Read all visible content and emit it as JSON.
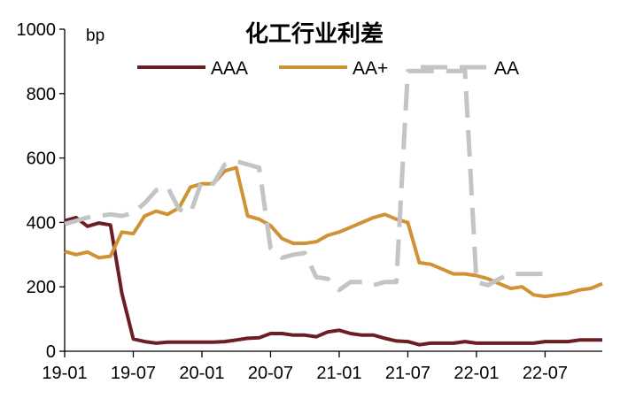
{
  "chart_data": {
    "type": "line",
    "title": "化工行业利差",
    "unit_label": "bp",
    "ylim": [
      0,
      1000
    ],
    "y_ticks": [
      0,
      200,
      400,
      600,
      800,
      1000
    ],
    "x_start": "2019-01",
    "x_end": "2022-12",
    "x_ticks": [
      {
        "label": "19-01",
        "month": "2019-01"
      },
      {
        "label": "19-07",
        "month": "2019-07"
      },
      {
        "label": "20-01",
        "month": "2020-01"
      },
      {
        "label": "20-07",
        "month": "2020-07"
      },
      {
        "label": "21-01",
        "month": "2021-01"
      },
      {
        "label": "21-07",
        "month": "2021-07"
      },
      {
        "label": "22-01",
        "month": "2022-01"
      },
      {
        "label": "22-07",
        "month": "2022-07"
      }
    ],
    "grid": false,
    "legend_position": "top",
    "series": [
      {
        "name": "AAA",
        "color": "#6b1f22",
        "style": "solid",
        "points": [
          [
            "2019-01",
            405
          ],
          [
            "2019-02",
            415
          ],
          [
            "2019-03",
            388
          ],
          [
            "2019-04",
            398
          ],
          [
            "2019-05",
            392
          ],
          [
            "2019-06",
            180
          ],
          [
            "2019-07",
            38
          ],
          [
            "2019-08",
            30
          ],
          [
            "2019-09",
            25
          ],
          [
            "2019-10",
            28
          ],
          [
            "2019-11",
            28
          ],
          [
            "2019-12",
            28
          ],
          [
            "2020-01",
            28
          ],
          [
            "2020-02",
            28
          ],
          [
            "2020-03",
            30
          ],
          [
            "2020-04",
            35
          ],
          [
            "2020-05",
            40
          ],
          [
            "2020-06",
            42
          ],
          [
            "2020-07",
            55
          ],
          [
            "2020-08",
            55
          ],
          [
            "2020-09",
            50
          ],
          [
            "2020-10",
            50
          ],
          [
            "2020-11",
            45
          ],
          [
            "2020-12",
            60
          ],
          [
            "2021-01",
            65
          ],
          [
            "2021-02",
            55
          ],
          [
            "2021-03",
            50
          ],
          [
            "2021-04",
            50
          ],
          [
            "2021-05",
            40
          ],
          [
            "2021-06",
            32
          ],
          [
            "2021-07",
            30
          ],
          [
            "2021-08",
            20
          ],
          [
            "2021-09",
            25
          ],
          [
            "2021-10",
            25
          ],
          [
            "2021-11",
            25
          ],
          [
            "2021-12",
            30
          ],
          [
            "2022-01",
            25
          ],
          [
            "2022-02",
            25
          ],
          [
            "2022-03",
            25
          ],
          [
            "2022-04",
            25
          ],
          [
            "2022-05",
            25
          ],
          [
            "2022-06",
            25
          ],
          [
            "2022-07",
            30
          ],
          [
            "2022-08",
            30
          ],
          [
            "2022-09",
            30
          ],
          [
            "2022-10",
            35
          ],
          [
            "2022-11",
            35
          ],
          [
            "2022-12",
            35
          ]
        ]
      },
      {
        "name": "AA+",
        "color": "#cf9235",
        "style": "solid",
        "points": [
          [
            "2019-01",
            310
          ],
          [
            "2019-02",
            300
          ],
          [
            "2019-03",
            308
          ],
          [
            "2019-04",
            290
          ],
          [
            "2019-05",
            295
          ],
          [
            "2019-06",
            370
          ],
          [
            "2019-07",
            365
          ],
          [
            "2019-08",
            420
          ],
          [
            "2019-09",
            435
          ],
          [
            "2019-10",
            425
          ],
          [
            "2019-11",
            445
          ],
          [
            "2019-12",
            510
          ],
          [
            "2020-01",
            520
          ],
          [
            "2020-02",
            520
          ],
          [
            "2020-03",
            560
          ],
          [
            "2020-04",
            570
          ],
          [
            "2020-05",
            420
          ],
          [
            "2020-06",
            410
          ],
          [
            "2020-07",
            390
          ],
          [
            "2020-08",
            350
          ],
          [
            "2020-09",
            335
          ],
          [
            "2020-10",
            335
          ],
          [
            "2020-11",
            340
          ],
          [
            "2020-12",
            360
          ],
          [
            "2021-01",
            370
          ],
          [
            "2021-02",
            385
          ],
          [
            "2021-03",
            400
          ],
          [
            "2021-04",
            415
          ],
          [
            "2021-05",
            425
          ],
          [
            "2021-06",
            410
          ],
          [
            "2021-07",
            400
          ],
          [
            "2021-08",
            275
          ],
          [
            "2021-09",
            270
          ],
          [
            "2021-10",
            255
          ],
          [
            "2021-11",
            240
          ],
          [
            "2021-12",
            240
          ],
          [
            "2022-01",
            235
          ],
          [
            "2022-02",
            225
          ],
          [
            "2022-03",
            210
          ],
          [
            "2022-04",
            195
          ],
          [
            "2022-05",
            200
          ],
          [
            "2022-06",
            175
          ],
          [
            "2022-07",
            170
          ],
          [
            "2022-08",
            175
          ],
          [
            "2022-09",
            180
          ],
          [
            "2022-10",
            190
          ],
          [
            "2022-11",
            195
          ],
          [
            "2022-12",
            210
          ]
        ]
      },
      {
        "name": "AA",
        "color": "#c4c4c4",
        "style": "dashed",
        "points": [
          [
            "2019-01",
            395
          ],
          [
            "2019-02",
            405
          ],
          [
            "2019-03",
            415
          ],
          [
            "2019-04",
            420
          ],
          [
            "2019-05",
            425
          ],
          [
            "2019-06",
            420
          ],
          [
            "2019-07",
            430
          ],
          [
            "2019-08",
            460
          ],
          [
            "2019-09",
            500
          ],
          [
            "2019-10",
            510
          ],
          [
            "2019-11",
            440
          ],
          [
            "2019-12",
            430
          ],
          [
            "2020-01",
            530
          ],
          [
            "2020-02",
            520
          ],
          [
            "2020-03",
            580
          ],
          [
            "2020-04",
            590
          ],
          [
            "2020-05",
            580
          ],
          [
            "2020-06",
            570
          ],
          [
            "2020-07",
            320
          ],
          [
            "2020-08",
            290
          ],
          [
            "2020-09",
            300
          ],
          [
            "2020-10",
            305
          ],
          [
            "2020-11",
            230
          ],
          [
            "2020-12",
            225
          ],
          [
            "2021-01",
            190
          ],
          [
            "2021-02",
            215
          ],
          [
            "2021-03",
            215
          ],
          [
            "2021-04",
            205
          ],
          [
            "2021-05",
            215
          ],
          [
            "2021-06",
            215
          ],
          [
            "2021-07",
            870
          ],
          [
            "2021-08",
            870
          ],
          [
            "2021-09",
            870
          ],
          [
            "2021-10",
            870
          ],
          [
            "2021-11",
            870
          ],
          [
            "2021-12",
            870
          ],
          [
            "2022-01",
            215
          ],
          [
            "2022-02",
            205
          ],
          [
            "2022-03",
            225
          ],
          [
            "2022-04",
            240
          ],
          [
            "2022-05",
            240
          ],
          [
            "2022-06",
            240
          ],
          [
            "2022-07",
            240
          ]
        ]
      }
    ]
  }
}
